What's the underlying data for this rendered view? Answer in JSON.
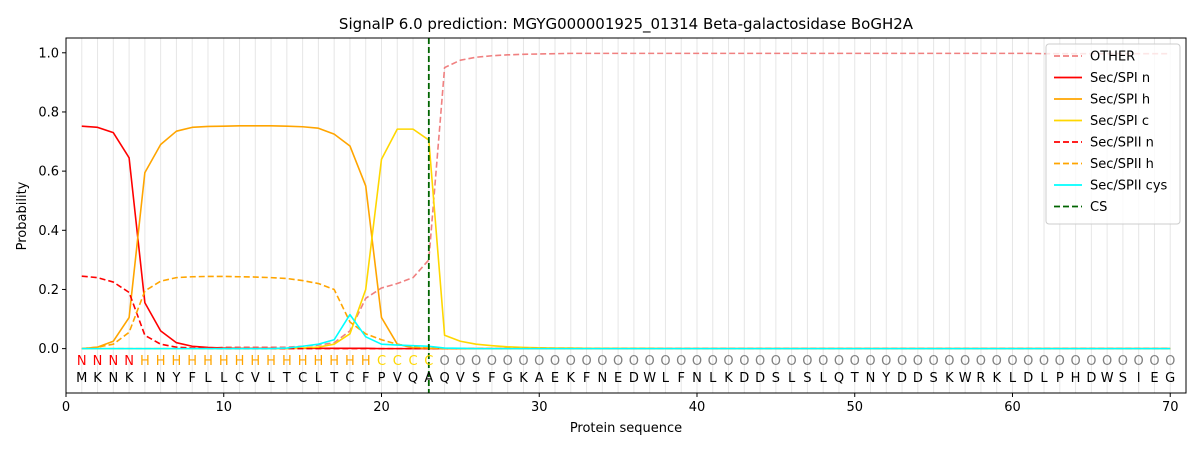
{
  "chart_data": {
    "type": "line",
    "title": "SignalP 6.0 prediction: MGYG000001925_01314 Beta-galactosidase BoGH2A",
    "xlabel": "Protein sequence",
    "ylabel": "Probability",
    "xlim": [
      0,
      71
    ],
    "ylim": [
      -0.15,
      1.05
    ],
    "x_ticks": [
      0,
      10,
      20,
      30,
      40,
      50,
      60,
      70
    ],
    "y_ticks": [
      0.0,
      0.2,
      0.4,
      0.6,
      0.8,
      1.0
    ],
    "x_tick_labels": [
      "0",
      "10",
      "20",
      "30",
      "40",
      "50",
      "60",
      "70"
    ],
    "y_tick_labels": [
      "0.0",
      "0.2",
      "0.4",
      "0.6",
      "0.8",
      "1.0"
    ],
    "grid": "vertical lines at each residue",
    "legend_position": "top-right",
    "cleavage_site": 23,
    "sequence": [
      "M",
      "K",
      "N",
      "K",
      "I",
      "N",
      "Y",
      "F",
      "L",
      "L",
      "C",
      "V",
      "L",
      "T",
      "C",
      "L",
      "T",
      "C",
      "F",
      "P",
      "V",
      "Q",
      "A",
      "Q",
      "V",
      "S",
      "F",
      "G",
      "K",
      "A",
      "E",
      "K",
      "F",
      "N",
      "E",
      "D",
      "W",
      "L",
      "F",
      "N",
      "L",
      "K",
      "D",
      "D",
      "S",
      "L",
      "S",
      "L",
      "Q",
      "T",
      "N",
      "Y",
      "D",
      "D",
      "S",
      "K",
      "W",
      "R",
      "K",
      "L",
      "D",
      "L",
      "P",
      "H",
      "D",
      "W",
      "S",
      "I",
      "E",
      "G"
    ],
    "region_labels": [
      "N",
      "N",
      "N",
      "N",
      "H",
      "H",
      "H",
      "H",
      "H",
      "H",
      "H",
      "H",
      "H",
      "H",
      "H",
      "H",
      "H",
      "H",
      "H",
      "C",
      "C",
      "C",
      "C",
      "O",
      "O",
      "O",
      "O",
      "O",
      "O",
      "O",
      "O",
      "O",
      "O",
      "O",
      "O",
      "O",
      "O",
      "O",
      "O",
      "O",
      "O",
      "O",
      "O",
      "O",
      "O",
      "O",
      "O",
      "O",
      "O",
      "O",
      "O",
      "O",
      "O",
      "O",
      "O",
      "O",
      "O",
      "O",
      "O",
      "O",
      "O",
      "O",
      "O",
      "O",
      "O",
      "O",
      "O",
      "O",
      "O",
      "O"
    ],
    "region_colors": {
      "N": "#ff0000",
      "H": "#ffa500",
      "C": "#ffd700",
      "O": "#808080"
    },
    "series": [
      {
        "name": "OTHER",
        "color": "#f08080",
        "dash": "dashed",
        "values": [
          0.0,
          0.0,
          0.0,
          0.0,
          0.0,
          0.0,
          0.0,
          0.0,
          0.0,
          0.005,
          0.005,
          0.005,
          0.005,
          0.005,
          0.008,
          0.012,
          0.02,
          0.06,
          0.17,
          0.205,
          0.22,
          0.24,
          0.3,
          0.95,
          0.975,
          0.985,
          0.99,
          0.993,
          0.995,
          0.996,
          0.997,
          0.998,
          0.998,
          0.998,
          0.998,
          0.998,
          0.998,
          0.998,
          0.998,
          0.998,
          0.998,
          0.998,
          0.998,
          0.998,
          0.998,
          0.998,
          0.998,
          0.998,
          0.998,
          0.998,
          0.998,
          0.998,
          0.998,
          0.998,
          0.998,
          0.998,
          0.998,
          0.998,
          0.998,
          0.998,
          0.998,
          0.997,
          0.997,
          0.997,
          0.997,
          0.997,
          0.997,
          0.997,
          0.997,
          0.997
        ]
      },
      {
        "name": "Sec/SPI n",
        "color": "#ff0000",
        "dash": "solid",
        "values": [
          0.752,
          0.748,
          0.73,
          0.645,
          0.155,
          0.06,
          0.02,
          0.008,
          0.004,
          0.002,
          0.001,
          0.001,
          0.001,
          0.001,
          0.001,
          0.001,
          0.001,
          0.001,
          0.001,
          0.0,
          0.0,
          0.0,
          0.0,
          0.0,
          0.0,
          0.0,
          0.0,
          0.0,
          0.0,
          0.0,
          0.0,
          0.0,
          0.0,
          0.0,
          0.0,
          0.0,
          0.0,
          0.0,
          0.0,
          0.0,
          0.0,
          0.0,
          0.0,
          0.0,
          0.0,
          0.0,
          0.0,
          0.0,
          0.0,
          0.0,
          0.0,
          0.0,
          0.0,
          0.0,
          0.0,
          0.0,
          0.0,
          0.0,
          0.0,
          0.0,
          0.0,
          0.0,
          0.0,
          0.0,
          0.0,
          0.0,
          0.0,
          0.0,
          0.0,
          0.0
        ]
      },
      {
        "name": "Sec/SPI h",
        "color": "#ffa500",
        "dash": "solid",
        "values": [
          0.0,
          0.005,
          0.025,
          0.105,
          0.595,
          0.69,
          0.735,
          0.748,
          0.751,
          0.752,
          0.753,
          0.753,
          0.753,
          0.752,
          0.75,
          0.745,
          0.725,
          0.685,
          0.55,
          0.105,
          0.015,
          0.003,
          0.001,
          0.0,
          0.0,
          0.0,
          0.0,
          0.0,
          0.0,
          0.0,
          0.0,
          0.0,
          0.0,
          0.0,
          0.0,
          0.0,
          0.0,
          0.0,
          0.0,
          0.0,
          0.0,
          0.0,
          0.0,
          0.0,
          0.0,
          0.0,
          0.0,
          0.0,
          0.0,
          0.0,
          0.0,
          0.0,
          0.0,
          0.0,
          0.0,
          0.0,
          0.0,
          0.0,
          0.0,
          0.0,
          0.0,
          0.0,
          0.0,
          0.0,
          0.0,
          0.0,
          0.0,
          0.0,
          0.0,
          0.0
        ]
      },
      {
        "name": "Sec/SPI c",
        "color": "#ffd700",
        "dash": "solid",
        "values": [
          0.0,
          0.0,
          0.0,
          0.0,
          0.0,
          0.0,
          0.0,
          0.0,
          0.0,
          0.0,
          0.0,
          0.0,
          0.0,
          0.0,
          0.002,
          0.005,
          0.015,
          0.05,
          0.2,
          0.64,
          0.742,
          0.742,
          0.705,
          0.045,
          0.025,
          0.015,
          0.01,
          0.006,
          0.004,
          0.003,
          0.002,
          0.002,
          0.001,
          0.001,
          0.001,
          0.001,
          0.001,
          0.0,
          0.0,
          0.0,
          0.0,
          0.0,
          0.0,
          0.0,
          0.0,
          0.0,
          0.0,
          0.0,
          0.0,
          0.0,
          0.0,
          0.0,
          0.0,
          0.0,
          0.0,
          0.0,
          0.0,
          0.0,
          0.0,
          0.0,
          0.0,
          0.0,
          0.0,
          0.0,
          0.0,
          0.0,
          0.0,
          0.0,
          0.0,
          0.0
        ]
      },
      {
        "name": "Sec/SPII n",
        "color": "#ff0000",
        "dash": "dashed",
        "values": [
          0.245,
          0.24,
          0.225,
          0.19,
          0.045,
          0.015,
          0.005,
          0.002,
          0.001,
          0.0,
          0.0,
          0.0,
          0.0,
          0.0,
          0.0,
          0.0,
          0.0,
          0.0,
          0.0,
          0.0,
          0.0,
          0.0,
          0.0,
          0.0,
          0.0,
          0.0,
          0.0,
          0.0,
          0.0,
          0.0,
          0.0,
          0.0,
          0.0,
          0.0,
          0.0,
          0.0,
          0.0,
          0.0,
          0.0,
          0.0,
          0.0,
          0.0,
          0.0,
          0.0,
          0.0,
          0.0,
          0.0,
          0.0,
          0.0,
          0.0,
          0.0,
          0.0,
          0.0,
          0.0,
          0.0,
          0.0,
          0.0,
          0.0,
          0.0,
          0.0,
          0.0,
          0.0,
          0.0,
          0.0,
          0.0,
          0.0,
          0.0,
          0.0,
          0.0,
          0.0
        ]
      },
      {
        "name": "Sec/SPII h",
        "color": "#ffa500",
        "dash": "dashed",
        "values": [
          0.0,
          0.005,
          0.015,
          0.055,
          0.195,
          0.228,
          0.24,
          0.243,
          0.244,
          0.244,
          0.243,
          0.242,
          0.24,
          0.237,
          0.23,
          0.22,
          0.2,
          0.09,
          0.05,
          0.03,
          0.015,
          0.005,
          0.002,
          0.0,
          0.0,
          0.0,
          0.0,
          0.0,
          0.0,
          0.0,
          0.0,
          0.0,
          0.0,
          0.0,
          0.0,
          0.0,
          0.0,
          0.0,
          0.0,
          0.0,
          0.0,
          0.0,
          0.0,
          0.0,
          0.0,
          0.0,
          0.0,
          0.0,
          0.0,
          0.0,
          0.0,
          0.0,
          0.0,
          0.0,
          0.0,
          0.0,
          0.0,
          0.0,
          0.0,
          0.0,
          0.0,
          0.0,
          0.0,
          0.0,
          0.0,
          0.0,
          0.0,
          0.0,
          0.0,
          0.0
        ]
      },
      {
        "name": "Sec/SPII cys",
        "color": "#00ffff",
        "dash": "solid",
        "values": [
          0.0,
          0.0,
          0.0,
          0.0,
          0.0,
          0.0,
          0.0,
          0.0,
          0.0,
          0.0,
          0.0,
          0.0,
          0.0,
          0.002,
          0.008,
          0.015,
          0.03,
          0.115,
          0.04,
          0.015,
          0.012,
          0.01,
          0.008,
          0.002,
          0.001,
          0.0,
          0.0,
          0.0,
          0.0,
          0.0,
          0.0,
          0.0,
          0.0,
          0.0,
          0.0,
          0.0,
          0.0,
          0.0,
          0.0,
          0.0,
          0.0,
          0.0,
          0.0,
          0.0,
          0.0,
          0.0,
          0.0,
          0.0,
          0.0,
          0.0,
          0.0,
          0.0,
          0.0,
          0.0,
          0.0,
          0.0,
          0.0,
          0.0,
          0.0,
          0.0,
          0.0,
          0.0,
          0.0,
          0.0,
          0.0,
          0.0,
          0.0,
          0.0,
          0.0,
          0.0
        ]
      }
    ],
    "cs_legend": {
      "name": "CS",
      "color": "#006400",
      "dash": "dashed"
    }
  }
}
